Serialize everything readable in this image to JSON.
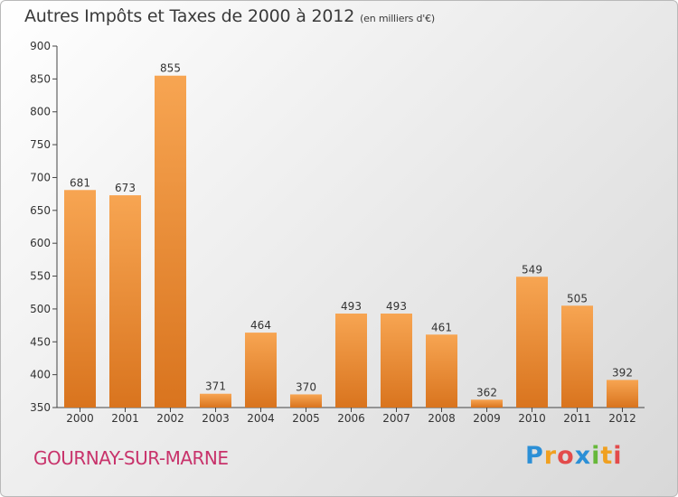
{
  "chart_data": {
    "type": "bar",
    "title": "Autres Impôts et Taxes de 2000 à 2012",
    "subtitle": "(en milliers d'€)",
    "categories": [
      "2000",
      "2001",
      "2002",
      "2003",
      "2004",
      "2005",
      "2006",
      "2007",
      "2008",
      "2009",
      "2010",
      "2011",
      "2012"
    ],
    "values": [
      681,
      673,
      855,
      371,
      464,
      370,
      493,
      493,
      461,
      362,
      549,
      505,
      392
    ],
    "xlabel": "",
    "ylabel": "",
    "ylim": [
      350,
      900
    ],
    "yticks": [
      350,
      400,
      450,
      500,
      550,
      600,
      650,
      700,
      750,
      800,
      850,
      900
    ],
    "grid": false,
    "bar_color_top": "#f7a552",
    "bar_color_bottom": "#d9741e"
  },
  "footer": {
    "commune": "GOURNAY-SUR-MARNE",
    "logo_letters": [
      {
        "ch": "P",
        "color": "#2b8fd6"
      },
      {
        "ch": "r",
        "color": "#f0a020"
      },
      {
        "ch": "o",
        "color": "#e34b4b"
      },
      {
        "ch": "x",
        "color": "#2b8fd6"
      },
      {
        "ch": "i",
        "color": "#67b83a"
      },
      {
        "ch": "t",
        "color": "#f0a020"
      },
      {
        "ch": "i",
        "color": "#e34b4b"
      }
    ]
  }
}
